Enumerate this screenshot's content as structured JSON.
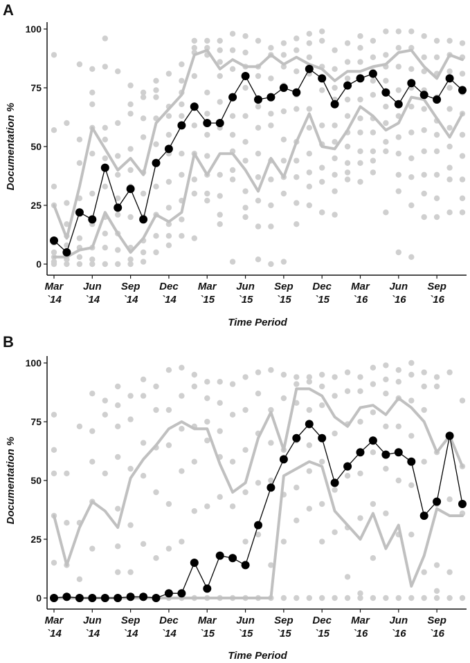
{
  "chart_data": [
    {
      "type": "line",
      "panel_label": "A",
      "title": "",
      "xlabel": "Time Period",
      "ylabel": "Documentation %",
      "ylim": [
        0,
        100
      ],
      "yticks": [
        0,
        25,
        50,
        75,
        100
      ],
      "x_tick_labels": [
        {
          "index": 0,
          "line1": "Mar",
          "line2": "`14"
        },
        {
          "index": 3,
          "line1": "Jun",
          "line2": "`14"
        },
        {
          "index": 6,
          "line1": "Sep",
          "line2": "`14"
        },
        {
          "index": 9,
          "line1": "Dec",
          "line2": "`14"
        },
        {
          "index": 12,
          "line1": "Mar",
          "line2": "`15"
        },
        {
          "index": 15,
          "line1": "Jun",
          "line2": "`15"
        },
        {
          "index": 18,
          "line1": "Sep",
          "line2": "`15"
        },
        {
          "index": 21,
          "line1": "Dec",
          "line2": "`15"
        },
        {
          "index": 24,
          "line1": "Mar",
          "line2": "`16"
        },
        {
          "index": 27,
          "line1": "Jun",
          "line2": "`16"
        },
        {
          "index": 30,
          "line1": "Sep",
          "line2": "`16"
        }
      ],
      "series": [
        {
          "name": "mean",
          "color": "#000000",
          "values": [
            10,
            5,
            22,
            19,
            41,
            24,
            32,
            19,
            43,
            49,
            59,
            67,
            60,
            60,
            71,
            80,
            70,
            71,
            75,
            73,
            83,
            79,
            68,
            76,
            79,
            81,
            73,
            68,
            77,
            72,
            70,
            79,
            74
          ]
        },
        {
          "name": "upper",
          "color": "#c0c0c0",
          "values": [
            25,
            11,
            33,
            58,
            49,
            40,
            45,
            38,
            60,
            66,
            72,
            89,
            91,
            83,
            87,
            84,
            84,
            89,
            85,
            88,
            85,
            83,
            78,
            82,
            82,
            84,
            85,
            90,
            91,
            84,
            79,
            89,
            87
          ]
        },
        {
          "name": "lower",
          "color": "#c0c0c0",
          "values": [
            3,
            3,
            6,
            7,
            22,
            13,
            5,
            11,
            21,
            18,
            22,
            47,
            38,
            47,
            47,
            40,
            31,
            45,
            37,
            52,
            64,
            50,
            49,
            57,
            67,
            63,
            57,
            60,
            71,
            70,
            62,
            54,
            64
          ]
        }
      ],
      "scatter": [
        [
          89,
          57,
          33,
          25,
          9,
          5,
          3,
          1,
          0
        ],
        [
          60,
          26,
          17,
          12,
          8,
          4,
          2,
          0
        ],
        [
          85,
          53,
          43,
          28,
          22,
          11,
          7,
          3,
          0
        ],
        [
          83,
          73,
          68,
          58,
          47,
          30,
          17,
          7,
          2,
          0
        ],
        [
          96,
          84,
          58,
          53,
          45,
          33,
          20,
          13,
          7,
          0
        ],
        [
          82,
          60,
          46,
          38,
          28,
          21,
          13,
          6,
          0
        ],
        [
          76,
          68,
          64,
          49,
          40,
          33,
          20,
          7,
          2,
          0
        ],
        [
          73,
          71,
          62,
          54,
          39,
          30,
          20,
          10,
          5,
          1
        ],
        [
          78,
          74,
          71,
          62,
          51,
          43,
          33,
          21,
          12,
          5
        ],
        [
          81,
          67,
          63,
          55,
          47,
          35,
          24,
          17,
          12,
          8
        ],
        [
          85,
          78,
          73,
          68,
          63,
          47,
          38,
          27,
          19,
          12
        ],
        [
          95,
          92,
          90,
          80,
          67,
          59,
          47,
          36,
          30,
          11
        ],
        [
          95,
          92,
          89,
          73,
          64,
          55,
          46,
          38,
          30,
          27
        ],
        [
          95,
          91,
          86,
          80,
          69,
          58,
          38,
          29,
          21,
          17
        ],
        [
          98,
          91,
          83,
          71,
          63,
          55,
          48,
          40,
          36,
          1
        ],
        [
          97,
          90,
          84,
          75,
          63,
          52,
          44,
          31,
          24,
          20
        ],
        [
          95,
          84,
          80,
          67,
          58,
          47,
          37,
          27,
          16,
          2
        ],
        [
          92,
          89,
          79,
          64,
          59,
          44,
          36,
          25,
          16,
          0
        ],
        [
          94,
          89,
          84,
          76,
          65,
          53,
          44,
          37,
          30,
          1
        ],
        [
          96,
          91,
          82,
          72,
          66,
          52,
          44,
          37,
          26,
          17
        ],
        [
          98,
          94,
          88,
          81,
          66,
          58,
          47,
          39,
          33,
          25
        ],
        [
          99,
          95,
          84,
          74,
          59,
          51,
          41,
          35,
          22,
          22
        ],
        [
          91,
          83,
          75,
          70,
          59,
          52,
          45,
          38,
          31,
          21
        ],
        [
          94,
          86,
          79,
          70,
          63,
          56,
          50,
          43,
          39,
          36
        ],
        [
          97,
          92,
          86,
          79,
          70,
          62,
          56,
          48,
          43,
          35
        ],
        [
          95,
          88,
          82,
          78,
          72,
          62,
          56,
          48,
          44,
          39
        ],
        [
          99,
          89,
          84,
          78,
          73,
          67,
          60,
          52,
          48,
          22
        ],
        [
          99,
          92,
          84,
          74,
          63,
          54,
          47,
          38,
          31,
          5
        ],
        [
          99,
          92,
          83,
          75,
          67,
          56,
          45,
          37,
          25,
          3
        ],
        [
          97,
          88,
          82,
          74,
          66,
          57,
          48,
          38,
          30,
          20
        ],
        [
          95,
          88,
          81,
          71,
          61,
          55,
          48,
          38,
          28,
          20
        ],
        [
          95,
          89,
          82,
          75,
          66,
          58,
          50,
          41,
          36,
          22
        ],
        [
          94,
          88,
          81,
          73,
          64,
          55,
          46,
          36,
          28,
          22
        ]
      ]
    },
    {
      "type": "line",
      "panel_label": "B",
      "title": "",
      "xlabel": "Time Period",
      "ylabel": "Documentation %",
      "ylim": [
        0,
        100
      ],
      "yticks": [
        0,
        25,
        50,
        75,
        100
      ],
      "x_tick_labels": [
        {
          "index": 0,
          "line1": "Mar",
          "line2": "`14"
        },
        {
          "index": 3,
          "line1": "Jun",
          "line2": "`14"
        },
        {
          "index": 6,
          "line1": "Sep",
          "line2": "`14"
        },
        {
          "index": 9,
          "line1": "Dec",
          "line2": "`14"
        },
        {
          "index": 12,
          "line1": "Mar",
          "line2": "`15"
        },
        {
          "index": 15,
          "line1": "Jun",
          "line2": "`15"
        },
        {
          "index": 18,
          "line1": "Sep",
          "line2": "`15"
        },
        {
          "index": 21,
          "line1": "Dec",
          "line2": "`15"
        },
        {
          "index": 24,
          "line1": "Mar",
          "line2": "`16"
        },
        {
          "index": 27,
          "line1": "Jun",
          "line2": "`16"
        },
        {
          "index": 30,
          "line1": "Sep",
          "line2": "`16"
        }
      ],
      "series": [
        {
          "name": "mean",
          "color": "#000000",
          "values": [
            0,
            0.5,
            0,
            0,
            0,
            0,
            0.5,
            0.5,
            0,
            2,
            2,
            15,
            4,
            18,
            17,
            14,
            31,
            47,
            59,
            68,
            74,
            68,
            49,
            56,
            62,
            67,
            61,
            62,
            58,
            35,
            41,
            69,
            40
          ]
        },
        {
          "name": "upper",
          "color": "#c0c0c0",
          "values": [
            35,
            14,
            30,
            41,
            37,
            30,
            51,
            59,
            65,
            72,
            75,
            72,
            72,
            57,
            45,
            49,
            68,
            79,
            63,
            89,
            89,
            86,
            77,
            73,
            81,
            82,
            78,
            85,
            81,
            75,
            62,
            69,
            56
          ]
        },
        {
          "name": "lower",
          "color": "#c0c0c0",
          "values": [
            0,
            0,
            0,
            0,
            0,
            0,
            0,
            0,
            0,
            0,
            0,
            0,
            0,
            0,
            0,
            0,
            0,
            0,
            52,
            55,
            58,
            56,
            37,
            31,
            25,
            36,
            21,
            31,
            5,
            18,
            38,
            35,
            35
          ]
        }
      ],
      "scatter": [
        [
          78,
          63,
          53,
          35,
          15,
          0
        ],
        [
          53,
          32,
          14,
          0
        ],
        [
          73,
          32,
          8,
          0
        ],
        [
          87,
          71,
          58,
          41,
          21,
          0
        ],
        [
          84,
          78,
          53,
          0
        ],
        [
          90,
          82,
          73,
          60,
          38,
          22,
          11,
          0
        ],
        [
          86,
          76,
          55,
          31,
          11,
          0
        ],
        [
          93,
          86,
          66,
          52,
          23,
          0
        ],
        [
          90,
          80,
          64,
          45,
          17,
          0
        ],
        [
          97,
          80,
          65,
          40,
          21,
          0
        ],
        [
          98,
          86,
          72,
          54,
          24,
          0
        ],
        [
          95,
          90,
          73,
          58,
          37,
          0
        ],
        [
          92,
          85,
          75,
          67,
          39,
          0
        ],
        [
          92,
          83,
          71,
          60,
          43,
          0
        ],
        [
          91,
          78,
          58,
          39,
          17,
          0
        ],
        [
          94,
          80,
          63,
          45,
          24,
          0
        ],
        [
          96,
          87,
          70,
          49,
          27,
          0
        ],
        [
          97,
          80,
          66,
          50,
          14,
          0
        ],
        [
          95,
          85,
          63,
          44,
          24,
          0
        ],
        [
          94,
          91,
          83,
          67,
          47,
          33,
          0
        ],
        [
          94,
          92,
          80,
          65,
          54,
          38,
          0
        ],
        [
          95,
          90,
          82,
          58,
          40,
          24,
          0
        ],
        [
          94,
          86,
          70,
          46,
          28,
          0
        ],
        [
          96,
          88,
          74,
          52,
          30,
          9,
          0
        ],
        [
          94,
          88,
          75,
          53,
          34,
          2,
          0
        ],
        [
          98,
          91,
          79,
          62,
          40,
          17,
          0
        ],
        [
          99,
          93,
          87,
          73,
          55,
          36,
          0
        ],
        [
          97,
          92,
          85,
          73,
          50,
          27,
          0
        ],
        [
          100,
          95,
          84,
          69,
          48,
          27,
          0
        ],
        [
          96,
          90,
          80,
          58,
          35,
          11,
          0
        ],
        [
          94,
          90,
          62,
          40,
          14,
          3,
          0
        ],
        [
          96,
          69,
          42,
          11,
          0
        ],
        [
          84,
          56,
          36,
          0
        ]
      ]
    }
  ]
}
